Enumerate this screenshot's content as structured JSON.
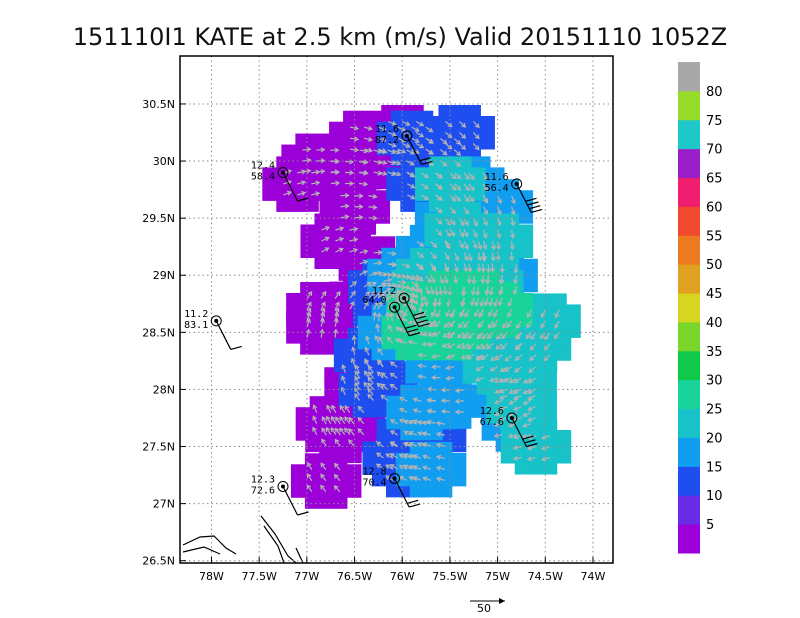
{
  "chart_data": {
    "type": "scatter",
    "title": "151110I1 KATE at 2.5 km (m/s) Valid 20151110 1052Z",
    "xlim": [
      -78.33,
      -73.79
    ],
    "ylim": [
      26.48,
      30.92
    ],
    "grid": true,
    "x_ticks": [
      -78,
      -77.5,
      -77,
      -76.5,
      -76,
      -75.5,
      -75,
      -74.5,
      -74
    ],
    "x_tick_labels": [
      "78W",
      "77.5W",
      "77W",
      "76.5W",
      "76W",
      "75.5W",
      "75W",
      "74.5W",
      "74W"
    ],
    "y_ticks": [
      26.5,
      27,
      27.5,
      28,
      28.5,
      29,
      29.5,
      30,
      30.5
    ],
    "y_tick_labels": [
      "26.5N",
      "27N",
      "27.5N",
      "28N",
      "28.5N",
      "29N",
      "29.5N",
      "30N",
      "30.5N"
    ],
    "colorbar": {
      "labels": [
        "5",
        "10",
        "15",
        "20",
        "25",
        "30",
        "35",
        "40",
        "45",
        "50",
        "55",
        "60",
        "65",
        "70",
        "75",
        "80"
      ],
      "colors": [
        "#9b00d8",
        "#6a2be6",
        "#1f4ef0",
        "#119ef0",
        "#17c3c8",
        "#19d49a",
        "#10c84a",
        "#7ad62a",
        "#d6d622",
        "#e0a020",
        "#ec7a20",
        "#f04a2c",
        "#f01e6e",
        "#9b1ec8",
        "#1ec8c8",
        "#96dc28",
        "#a8a8a8"
      ]
    },
    "wind_regions": [
      {
        "name": "5",
        "color": "#9b00d8",
        "points": [
          [
            -76.6,
            29.9
          ],
          [
            -76.4,
            30.2
          ],
          [
            -76.1,
            30.0
          ],
          [
            -76.5,
            29.6
          ],
          [
            -76.7,
            29.3
          ],
          [
            -76.3,
            29.1
          ],
          [
            -76.1,
            28.9
          ],
          [
            -76.4,
            28.8
          ],
          [
            -76.9,
            30.0
          ],
          [
            -77.1,
            29.8
          ],
          [
            -76.85,
            28.7
          ],
          [
            -76.85,
            28.55
          ],
          [
            -76.55,
            27.7
          ],
          [
            -76.75,
            27.7
          ],
          [
            -76.65,
            27.6
          ],
          [
            -76.8,
            27.2
          ],
          [
            -76.45,
            28.05
          ],
          [
            -76.0,
            30.25
          ],
          [
            -76.3,
            30.0
          ]
        ]
      },
      {
        "name": "10",
        "color": "#1f4ef0",
        "points": [
          [
            -75.6,
            30.1
          ],
          [
            -75.8,
            29.8
          ],
          [
            -75.9,
            30.2
          ],
          [
            -75.4,
            30.25
          ],
          [
            -76.05,
            28.85
          ],
          [
            -76.15,
            28.7
          ],
          [
            -75.95,
            28.75
          ],
          [
            -76.2,
            28.9
          ],
          [
            -76.35,
            28.3
          ],
          [
            -76.2,
            28.1
          ],
          [
            -76.3,
            28.0
          ],
          [
            -75.95,
            27.3
          ],
          [
            -76.05,
            27.4
          ],
          [
            -75.9,
            27.6
          ],
          [
            -75.7,
            27.6
          ]
        ]
      },
      {
        "name": "15",
        "color": "#119ef0",
        "points": [
          [
            -75.3,
            29.8
          ],
          [
            -75.0,
            29.6
          ],
          [
            -75.5,
            29.5
          ],
          [
            -75.7,
            29.2
          ],
          [
            -75.2,
            29.2
          ],
          [
            -74.95,
            29.0
          ],
          [
            -75.3,
            28.4
          ],
          [
            -75.5,
            27.9
          ],
          [
            -75.6,
            28.2
          ],
          [
            -75.8,
            27.8
          ],
          [
            -76.1,
            28.5
          ],
          [
            -75.7,
            27.3
          ],
          [
            -74.8,
            28.0
          ],
          [
            -74.8,
            27.7
          ],
          [
            -76.0,
            29.0
          ]
        ]
      },
      {
        "name": "20",
        "color": "#17c3c8",
        "points": [
          [
            -75.7,
            29.0
          ],
          [
            -75.3,
            29.1
          ],
          [
            -75.1,
            28.9
          ],
          [
            -74.9,
            28.5
          ],
          [
            -74.6,
            28.4
          ],
          [
            -74.5,
            28.6
          ],
          [
            -74.75,
            28.1
          ],
          [
            -74.75,
            27.85
          ],
          [
            -74.6,
            27.5
          ],
          [
            -75.0,
            28.2
          ],
          [
            -75.1,
            28.4
          ],
          [
            -75.5,
            29.8
          ],
          [
            -75.4,
            29.4
          ],
          [
            -75.0,
            29.3
          ],
          [
            -75.75,
            28.9
          ]
        ]
      },
      {
        "name": "25",
        "color": "#19d49a",
        "points": [
          [
            -75.5,
            28.8
          ],
          [
            -75.2,
            28.8
          ],
          [
            -75.0,
            28.7
          ],
          [
            -75.6,
            28.6
          ],
          [
            -75.3,
            28.6
          ],
          [
            -75.8,
            28.7
          ],
          [
            -75.85,
            28.5
          ],
          [
            -75.5,
            28.5
          ]
        ]
      }
    ],
    "wind_barbs": [
      {
        "label": "11.6 87.2",
        "speed_kt": 20,
        "lon": -75.95,
        "lat": 30.22
      },
      {
        "label": "12.4 58.4",
        "speed_kt": 5,
        "lon": -77.25,
        "lat": 29.9
      },
      {
        "label": "11.6 56.4",
        "speed_kt": 35,
        "lon": -74.8,
        "lat": 29.8
      },
      {
        "label": "11.2 83.1",
        "speed_kt": 5,
        "lon": -77.95,
        "lat": 28.6
      },
      {
        "label": "11.2",
        "speed_kt": 35,
        "lon": -75.98,
        "lat": 28.8
      },
      {
        "label": "64.0",
        "speed_kt": 30,
        "lon": -76.08,
        "lat": 28.72
      },
      {
        "label": "12.6 67.6",
        "speed_kt": 25,
        "lon": -74.85,
        "lat": 27.75
      },
      {
        "label": "12.8 70.4",
        "speed_kt": 15,
        "lon": -76.08,
        "lat": 27.22
      },
      {
        "label": "12.3 72.6",
        "speed_kt": 5,
        "lon": -77.25,
        "lat": 27.15
      }
    ],
    "reference_vector_label": "50"
  }
}
